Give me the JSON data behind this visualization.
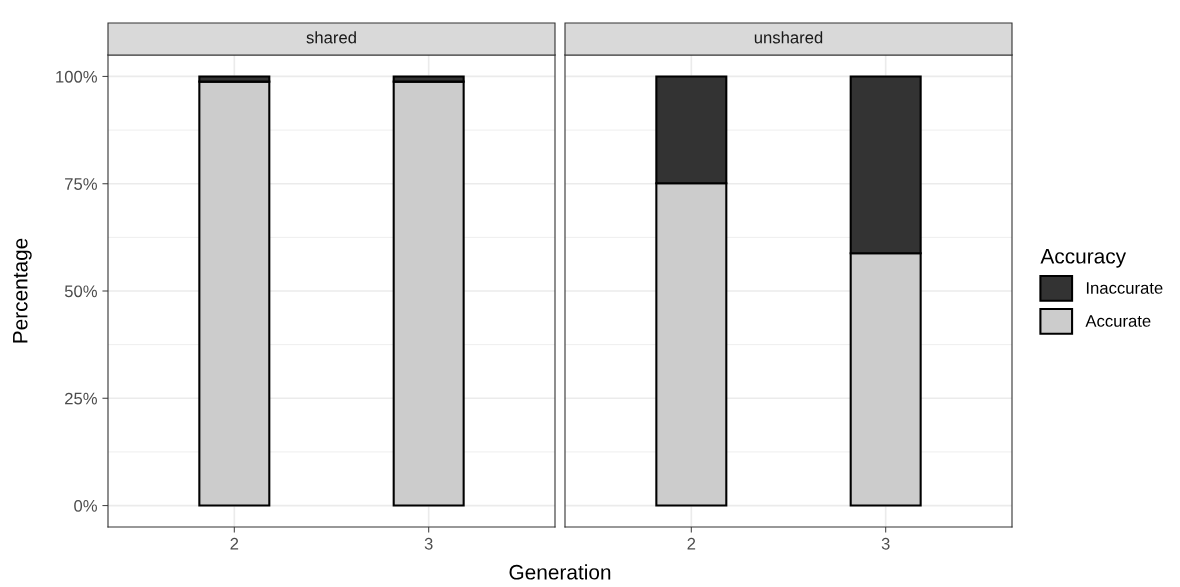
{
  "chart_data": [
    {
      "type": "bar",
      "title": "shared",
      "xlabel": "Generation",
      "ylabel": "Percentage",
      "categories": [
        "2",
        "3"
      ],
      "stacked": true,
      "grid": true,
      "legend": false,
      "series": [
        {
          "color": "#cccccc",
          "values": [
            98.8,
            98.8
          ]
        },
        {
          "color": "#333333",
          "values": [
            1.2,
            1.2
          ]
        }
      ],
      "ylim": [
        -5,
        105
      ],
      "yticks": [
        {
          "value": 0,
          "label": "0%"
        },
        {
          "value": 25,
          "label": "25%"
        },
        {
          "value": 50,
          "label": "50%"
        },
        {
          "value": 75,
          "label": "75%"
        },
        {
          "value": 100,
          "label": "100%"
        }
      ]
    },
    {
      "type": "bar",
      "title": "unshared",
      "categories": [
        "2",
        "3"
      ],
      "stacked": true,
      "grid": true,
      "legend": "right",
      "legend_title": "Accuracy",
      "tick_labels": "x",
      "series": [
        {
          "name": "Accurate",
          "color": "#cccccc",
          "values": [
            75.1,
            58.8
          ]
        },
        {
          "name": "Inaccurate",
          "color": "#333333",
          "values": [
            24.9,
            41.2
          ]
        }
      ],
      "ylim": [
        -5,
        105
      ]
    }
  ]
}
